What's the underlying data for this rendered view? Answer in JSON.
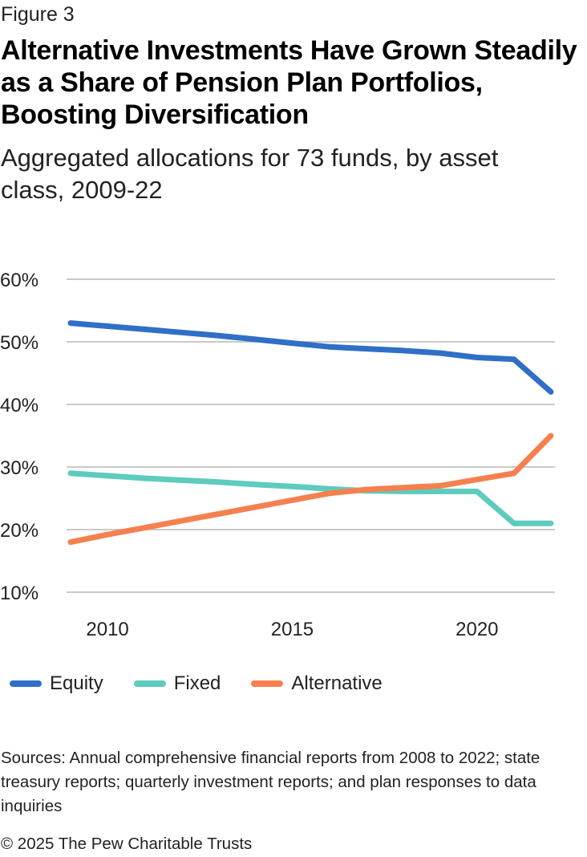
{
  "header": {
    "figure_label": "Figure 3",
    "title": "Alternative Investments Have Grown Steadily as a Share of Pension Plan Portfolios, Boosting Diversification",
    "subtitle": "Aggregated allocations for 73 funds, by asset class, 2009-22"
  },
  "chart_data": {
    "type": "line",
    "x": [
      2009,
      2010,
      2011,
      2012,
      2013,
      2014,
      2015,
      2016,
      2017,
      2018,
      2019,
      2020,
      2021,
      2022
    ],
    "series": [
      {
        "name": "Equity",
        "color": "#2f6fc6",
        "values": [
          53,
          52.5,
          52,
          51.5,
          51,
          50.4,
          49.8,
          49.2,
          48.9,
          48.6,
          48.2,
          47.5,
          47.2,
          42
        ]
      },
      {
        "name": "Fixed",
        "color": "#5dcbbd",
        "values": [
          29,
          28.6,
          28.2,
          27.9,
          27.6,
          27.2,
          26.9,
          26.5,
          26.2,
          26.1,
          26.1,
          26.1,
          21,
          21
        ]
      },
      {
        "name": "Alternative",
        "color": "#f5804f",
        "values": [
          18,
          19.2,
          20.3,
          21.4,
          22.5,
          23.6,
          24.7,
          25.8,
          26.4,
          26.7,
          27,
          28,
          29,
          35
        ]
      }
    ],
    "ylim": [
      10,
      60
    ],
    "yticks": [
      10,
      20,
      30,
      40,
      50,
      60
    ],
    "ytick_labels": [
      "10%",
      "20%",
      "30%",
      "40%",
      "50%",
      "60%"
    ],
    "xticks": [
      2010,
      2015,
      2020
    ],
    "xtick_labels": [
      "2010",
      "2015",
      "2020"
    ],
    "xlim": [
      2009,
      2022
    ],
    "grid": true,
    "legend_position": "bottom-left"
  },
  "footer": {
    "sources": "Sources: Annual comprehensive financial reports from 2008 to 2022; state treasury reports; quarterly investment reports; and plan responses to data inquiries",
    "copyright": "© 2025 The Pew Charitable Trusts"
  }
}
